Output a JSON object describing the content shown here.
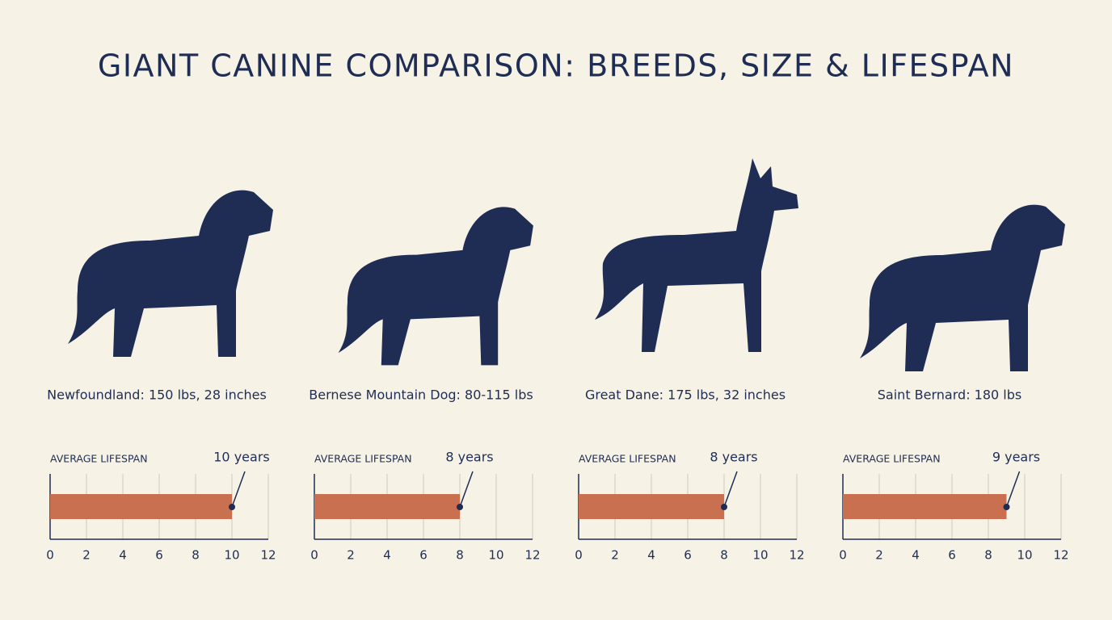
{
  "title": "GIANT CANINE COMPARISON: BREEDS, SIZE & LIFESPAN",
  "chart_data": [
    {
      "type": "bar",
      "orientation": "horizontal",
      "subtitle": "Newfoundland: 150 lbs, 28 inches",
      "title": "AVERAGE LIFESPAN",
      "values": [
        10
      ],
      "value_labels": [
        "10 years"
      ],
      "xlim": [
        0,
        12
      ],
      "xticks": [
        0,
        2,
        4,
        6,
        8,
        10,
        12
      ],
      "grid": true,
      "color": "#c8704f"
    },
    {
      "type": "bar",
      "orientation": "horizontal",
      "subtitle": "Bernese Mountain Dog: 80-115 lbs",
      "title": "AVERAGE LIFESPAN",
      "values": [
        8
      ],
      "value_labels": [
        "8 years"
      ],
      "xlim": [
        0,
        12
      ],
      "xticks": [
        0,
        2,
        4,
        6,
        8,
        10,
        12
      ],
      "grid": true,
      "color": "#c8704f"
    },
    {
      "type": "bar",
      "orientation": "horizontal",
      "subtitle": "Great Dane: 175 lbs, 32 inches",
      "title": "AVERAGE LIFESPAN",
      "values": [
        8
      ],
      "value_labels": [
        "8 years"
      ],
      "xlim": [
        0,
        12
      ],
      "xticks": [
        0,
        2,
        4,
        6,
        8,
        10,
        12
      ],
      "grid": true,
      "color": "#c8704f"
    },
    {
      "type": "bar",
      "orientation": "horizontal",
      "subtitle": "Saint Bernard: 180 lbs",
      "title": "AVERAGE LIFESPAN",
      "values": [
        9
      ],
      "value_labels": [
        "9 years"
      ],
      "xlim": [
        0,
        12
      ],
      "xticks": [
        0,
        2,
        4,
        6,
        8,
        10,
        12
      ],
      "grid": true,
      "color": "#c8704f"
    }
  ]
}
